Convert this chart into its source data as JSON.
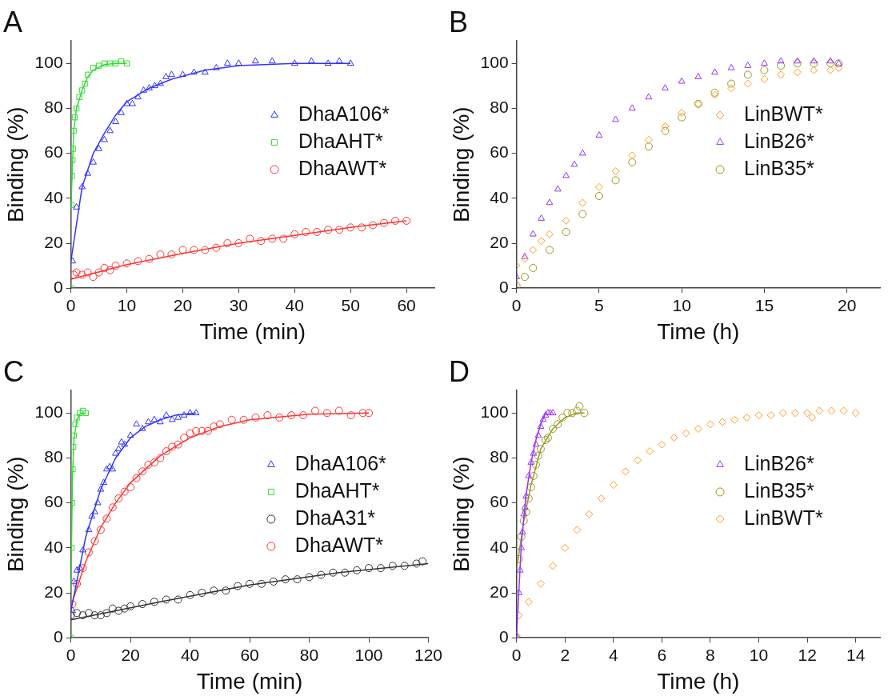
{
  "chart_data": [
    {
      "type": "scatter",
      "title": "A",
      "xlabel": "Time (min)",
      "ylabel": "Binding (%)",
      "xlim": [
        0,
        65
      ],
      "ylim": [
        0,
        110
      ],
      "xticks": [
        0,
        10,
        20,
        30,
        40,
        50,
        60
      ],
      "yticks": [
        0,
        20,
        40,
        60,
        80,
        100
      ],
      "legend": "right",
      "grid": false,
      "series": [
        {
          "name": "DhaA106*",
          "color": "#3333ff",
          "marker": "triangle",
          "x": [
            0.3,
            1,
            2,
            3,
            4,
            5,
            6,
            7,
            8,
            9,
            10,
            11,
            12,
            13,
            14,
            15,
            16,
            17,
            18,
            20,
            22,
            24,
            26,
            28,
            30,
            33,
            36,
            40,
            43,
            46,
            48,
            50
          ],
          "values": [
            12,
            36,
            45,
            51,
            56,
            62,
            66,
            70,
            74,
            78,
            82,
            82,
            85,
            88,
            89,
            90,
            91,
            94,
            95,
            95,
            96,
            96,
            98,
            100,
            100,
            101,
            101,
            100,
            101,
            100,
            101,
            100
          ]
        },
        {
          "name": "DhaAHT*",
          "color": "#33dd33",
          "marker": "square",
          "x": [
            0.05,
            0.1,
            0.2,
            0.3,
            0.4,
            0.5,
            0.7,
            1,
            1.5,
            2,
            2.5,
            3,
            4,
            5,
            6,
            7,
            8,
            9,
            10
          ],
          "values": [
            0,
            37,
            50,
            57,
            62,
            70,
            76,
            80,
            85,
            88,
            91,
            95,
            98,
            99,
            100,
            100,
            100,
            101,
            100
          ]
        },
        {
          "name": "DhaAWT*",
          "color": "#ff3333",
          "marker": "circle",
          "x": [
            0.5,
            1,
            2,
            3,
            4,
            5,
            6,
            7,
            8,
            10,
            12,
            14,
            16,
            18,
            20,
            22,
            24,
            26,
            28,
            30,
            32,
            34,
            36,
            38,
            40,
            42,
            44,
            46,
            48,
            50,
            52,
            54,
            56,
            58,
            60
          ],
          "values": [
            6,
            7,
            6,
            7,
            5,
            7,
            9,
            8,
            10,
            11,
            12,
            13,
            15,
            15,
            17,
            17,
            17,
            18,
            20,
            20,
            22,
            21,
            22,
            22,
            24,
            25,
            25,
            26,
            26,
            27,
            27,
            28,
            29,
            30,
            30
          ]
        },
        {
          "type": "line",
          "color": "#3333ff",
          "marker": "none",
          "x": [
            0,
            2,
            4,
            6,
            8,
            10,
            14,
            18,
            24,
            30,
            40,
            50
          ],
          "values": [
            12,
            45,
            60,
            69,
            77,
            83,
            89,
            93,
            97,
            99,
            100,
            100
          ]
        },
        {
          "type": "line",
          "color": "#33dd33",
          "marker": "none",
          "x": [
            0,
            0.5,
            1,
            2,
            3,
            4,
            6,
            8,
            10
          ],
          "values": [
            35,
            70,
            80,
            88,
            94,
            97,
            99.5,
            100,
            100
          ]
        },
        {
          "type": "line",
          "color": "#ff3333",
          "marker": "none",
          "x": [
            0,
            10,
            20,
            30,
            40,
            50,
            60
          ],
          "values": [
            4,
            10.5,
            15.5,
            20,
            23.5,
            27,
            30
          ]
        }
      ]
    },
    {
      "type": "scatter",
      "title": "B",
      "xlabel": "Time (h)",
      "ylabel": "Binding (%)",
      "xlim": [
        0,
        22
      ],
      "ylim": [
        0,
        110
      ],
      "xticks": [
        0,
        5,
        10,
        15,
        20
      ],
      "yticks": [
        0,
        20,
        40,
        60,
        80,
        100
      ],
      "legend": "right",
      "grid": false,
      "series": [
        {
          "name": "LinBWT*",
          "color": "#ff9922",
          "marker": "diamond",
          "x": [
            0,
            0.5,
            1,
            1.5,
            2,
            3,
            4,
            5,
            6,
            7,
            8,
            9,
            10,
            11,
            12,
            13,
            14,
            15,
            16,
            17,
            18,
            19,
            19.5
          ],
          "values": [
            10,
            13,
            17,
            21,
            24,
            30,
            38,
            45,
            52,
            59,
            66,
            72,
            78,
            82,
            86,
            89,
            91,
            93,
            95,
            96,
            97,
            97,
            98
          ]
        },
        {
          "name": "LinB26*",
          "color": "#9933ff",
          "marker": "triangle",
          "x": [
            0,
            0.5,
            1,
            1.5,
            2,
            2.5,
            3,
            3.5,
            4,
            5,
            6,
            7,
            8,
            9,
            10,
            11,
            12,
            13,
            14,
            15,
            16,
            17,
            18,
            19,
            19.5
          ],
          "values": [
            5,
            14,
            24,
            31,
            38,
            44,
            50,
            55,
            60,
            68,
            75,
            80,
            85,
            89,
            92,
            94,
            96,
            98,
            99,
            100,
            101,
            101,
            101,
            101,
            100
          ]
        },
        {
          "name": "LinB35*",
          "color": "#999922",
          "marker": "circle",
          "x": [
            0,
            0.5,
            1,
            2,
            3,
            4,
            5,
            6,
            7,
            8,
            9,
            10,
            11,
            12,
            13,
            14,
            15,
            16,
            17,
            18,
            19,
            19.5
          ],
          "values": [
            1,
            5,
            9,
            17,
            25,
            33,
            41,
            48,
            56,
            63,
            70,
            76,
            82,
            87,
            91,
            95,
            97,
            99,
            100,
            100,
            100,
            100
          ]
        }
      ]
    },
    {
      "type": "scatter",
      "title": "C",
      "xlabel": "Time (min)",
      "ylabel": "Binding (%)",
      "xlim": [
        0,
        120
      ],
      "ylim": [
        0,
        110
      ],
      "xticks": [
        0,
        20,
        40,
        60,
        80,
        100,
        120
      ],
      "yticks": [
        0,
        20,
        40,
        60,
        80,
        100
      ],
      "legend": "right",
      "grid": false,
      "series": [
        {
          "name": "DhaA106*",
          "color": "#3333ff",
          "marker": "triangle",
          "x": [
            0.5,
            1,
            2,
            3,
            4,
            6,
            7,
            8,
            9,
            10,
            11,
            12,
            13,
            14,
            15,
            16,
            17,
            18,
            20,
            22,
            24,
            26,
            28,
            30,
            32,
            34,
            36,
            38,
            40,
            42
          ],
          "values": [
            12,
            25,
            30,
            31,
            39,
            48,
            54,
            56,
            60,
            66,
            69,
            75,
            76,
            75,
            82,
            84,
            87,
            86,
            90,
            95,
            93,
            96,
            97,
            96,
            99,
            97,
            98,
            99,
            100,
            100
          ]
        },
        {
          "name": "DhaAHT*",
          "color": "#33dd33",
          "marker": "square",
          "x": [
            0,
            0.2,
            0.4,
            0.6,
            0.8,
            1,
            1.5,
            2,
            3,
            4,
            5
          ],
          "values": [
            0,
            40,
            60,
            75,
            85,
            90,
            95,
            98,
            100,
            101,
            100
          ]
        },
        {
          "name": "DhaA31*",
          "color": "#333333",
          "marker": "circle",
          "x": [
            0,
            2,
            4,
            6,
            8,
            10,
            12,
            14,
            16,
            18,
            20,
            24,
            28,
            32,
            36,
            40,
            44,
            48,
            52,
            56,
            60,
            64,
            68,
            72,
            76,
            80,
            84,
            88,
            92,
            96,
            100,
            104,
            108,
            112,
            116,
            118
          ],
          "values": [
            10,
            11,
            10,
            11,
            10,
            10,
            11,
            13,
            12,
            13,
            14,
            15,
            16,
            17,
            17,
            19,
            20,
            21,
            21,
            23,
            24,
            24,
            25,
            26,
            26,
            27,
            28,
            29,
            29,
            30,
            31,
            31,
            32,
            32,
            33,
            34
          ]
        },
        {
          "name": "DhaAWT*",
          "color": "#ff3333",
          "marker": "circle",
          "x": [
            0.5,
            2,
            4,
            6,
            8,
            10,
            12,
            14,
            16,
            18,
            20,
            22,
            24,
            26,
            28,
            30,
            32,
            34,
            36,
            38,
            40,
            42,
            44,
            46,
            48,
            50,
            54,
            58,
            62,
            66,
            70,
            74,
            78,
            82,
            86,
            90,
            94,
            98,
            100
          ],
          "values": [
            15,
            24,
            31,
            38,
            43,
            48,
            53,
            58,
            62,
            65,
            67,
            71,
            74,
            77,
            78,
            80,
            83,
            85,
            86,
            89,
            91,
            92,
            92,
            92,
            94,
            95,
            97,
            97,
            98,
            99,
            98,
            99,
            99,
            101,
            100,
            101,
            99,
            100,
            100
          ]
        },
        {
          "type": "line",
          "color": "#3333ff",
          "marker": "none",
          "x": [
            0,
            5,
            10,
            15,
            20,
            25,
            30,
            35,
            42
          ],
          "values": [
            12,
            45,
            66,
            80,
            89,
            94,
            97,
            99,
            100
          ]
        },
        {
          "type": "line",
          "color": "#33dd33",
          "marker": "none",
          "x": [
            0,
            0.5,
            1,
            2,
            3,
            5
          ],
          "values": [
            20,
            70,
            88,
            97,
            99.5,
            100
          ]
        },
        {
          "type": "line",
          "color": "#333333",
          "marker": "none",
          "x": [
            0,
            30,
            60,
            90,
            120
          ],
          "values": [
            8,
            16,
            23.5,
            29,
            33
          ]
        },
        {
          "type": "line",
          "color": "#ff3333",
          "marker": "none",
          "x": [
            0,
            5,
            10,
            15,
            20,
            30,
            40,
            50,
            60,
            80,
            100
          ],
          "values": [
            14,
            34,
            49,
            60,
            69,
            81,
            89,
            94,
            97,
            99.5,
            100
          ]
        }
      ]
    },
    {
      "type": "scatter",
      "title": "D",
      "xlabel": "Time (h)",
      "ylabel": "Binding (%)",
      "xlim": [
        0,
        15
      ],
      "ylim": [
        0,
        110
      ],
      "xticks": [
        0,
        2,
        4,
        6,
        8,
        10,
        12,
        14
      ],
      "yticks": [
        0,
        20,
        40,
        60,
        80,
        100
      ],
      "legend": "right",
      "grid": false,
      "series": [
        {
          "name": "LinB26*",
          "color": "#9933ff",
          "marker": "triangle",
          "x": [
            0.05,
            0.1,
            0.15,
            0.2,
            0.25,
            0.3,
            0.35,
            0.4,
            0.5,
            0.6,
            0.7,
            0.8,
            0.9,
            1,
            1.1,
            1.2,
            1.3,
            1.4,
            1.5
          ],
          "values": [
            0,
            20,
            30,
            40,
            47,
            55,
            58,
            63,
            72,
            78,
            82,
            86,
            90,
            94,
            97,
            99,
            100,
            100,
            100
          ]
        },
        {
          "name": "LinB35*",
          "color": "#999922",
          "marker": "circle",
          "x": [
            0.1,
            0.2,
            0.3,
            0.4,
            0.5,
            0.6,
            0.7,
            0.8,
            0.9,
            1,
            1.2,
            1.3,
            1.5,
            1.7,
            1.9,
            2.1,
            2.3,
            2.5,
            2.6,
            2.8
          ],
          "values": [
            35,
            45,
            52,
            56,
            62,
            67,
            72,
            77,
            81,
            84,
            88,
            89,
            93,
            95,
            98,
            100,
            100,
            101,
            103,
            100
          ]
        },
        {
          "name": "LinBWT*",
          "color": "#ff9922",
          "marker": "diamond",
          "x": [
            0,
            0.1,
            0.5,
            1,
            1.5,
            2,
            2.5,
            3,
            3.5,
            4,
            4.5,
            5,
            5.5,
            6,
            6.5,
            7,
            7.5,
            8,
            8.5,
            9,
            9.5,
            10,
            10.5,
            11,
            11.5,
            12,
            12.2,
            12.5,
            13,
            13.5,
            14
          ],
          "values": [
            1,
            10,
            16,
            24,
            32,
            40,
            48,
            55,
            62,
            68,
            74,
            79,
            83,
            86,
            89,
            91,
            93,
            95,
            96,
            97,
            98,
            99,
            99,
            100,
            100,
            100,
            98,
            101,
            101,
            101,
            100
          ]
        },
        {
          "type": "line",
          "color": "#9933ff",
          "marker": "none",
          "x": [
            0,
            0.2,
            0.4,
            0.6,
            0.8,
            1,
            1.2
          ],
          "values": [
            0,
            42,
            64,
            78,
            88,
            95,
            100
          ]
        },
        {
          "type": "line",
          "color": "#999922",
          "marker": "none",
          "x": [
            0,
            0.3,
            0.6,
            1,
            1.5,
            2,
            2.5,
            2.8
          ],
          "values": [
            30,
            52,
            68,
            84,
            93,
            98,
            100,
            100
          ]
        }
      ]
    }
  ]
}
